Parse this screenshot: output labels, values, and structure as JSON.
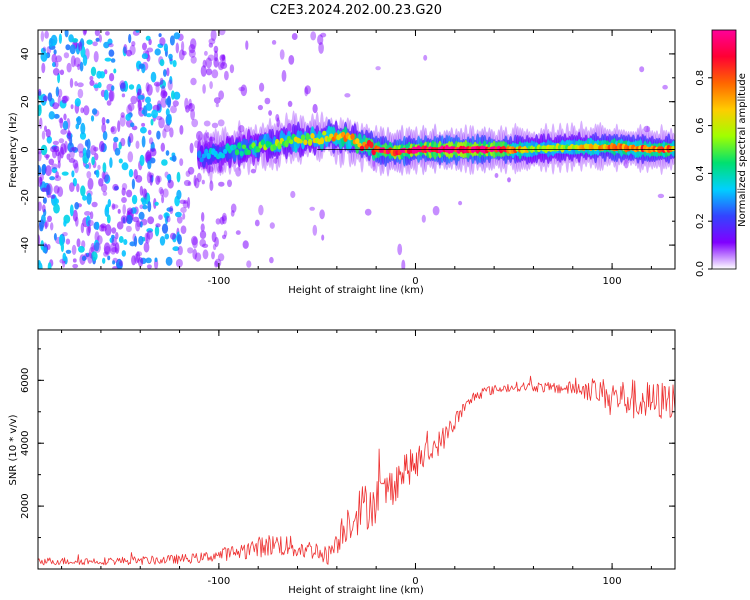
{
  "title": "C2E3.2024.202.00.23.G20",
  "colors": {
    "line": "#ee3333",
    "axis": "#000000",
    "colormap": [
      "#ffffff",
      "#8000ff",
      "#3344ff",
      "#00d0ff",
      "#00e070",
      "#a0ff00",
      "#ffcc00",
      "#ff6600",
      "#ff0033",
      "#ff0099"
    ]
  },
  "chart_data": [
    {
      "type": "heatmap",
      "xlabel": "Height of straight line (km)",
      "ylabel": "Frequency (Hz)",
      "xlim": [
        -192,
        132
      ],
      "ylim": [
        -50,
        50
      ],
      "x_ticks": [
        -100,
        0,
        100
      ],
      "y_ticks": [
        -40,
        -20,
        0,
        20,
        40
      ],
      "colorbar": {
        "label": "Normalized spectral amplitude",
        "range": [
          0,
          1
        ],
        "ticks": [
          "0.0",
          "0.2",
          "0.4",
          "0.6",
          "0.8"
        ],
        "tick_values": [
          0,
          0.2,
          0.4,
          0.6,
          0.8
        ]
      },
      "ridge": {
        "x": [
          -110,
          -90,
          -70,
          -50,
          -40,
          -30,
          -20,
          -10,
          0,
          20,
          40,
          60,
          80,
          100,
          120,
          132
        ],
        "frequency": [
          -3,
          0,
          3,
          5,
          5,
          3,
          0,
          -1,
          0,
          0,
          0,
          0,
          1,
          1,
          0,
          0
        ],
        "peak_amplitude": [
          0.3,
          0.45,
          0.55,
          0.6,
          0.7,
          0.75,
          0.85,
          0.92,
          0.95,
          0.97,
          0.95,
          0.55,
          0.6,
          0.75,
          0.8,
          0.75
        ]
      }
    },
    {
      "type": "line",
      "xlabel": "Height of straight line (km)",
      "ylabel": "SNR (10 * v/v)",
      "xlim": [
        -192,
        132
      ],
      "ylim": [
        0,
        7600
      ],
      "x_ticks": [
        -100,
        0,
        100
      ],
      "y_ticks": [
        2000,
        4000,
        6000
      ],
      "series": [
        {
          "x": [
            -192,
            -160,
            -130,
            -110,
            -100,
            -90,
            -80,
            -70,
            -60,
            -50,
            -45,
            -40,
            -35,
            -30,
            -25,
            -20,
            -15,
            -10,
            -5,
            0,
            5,
            10,
            15,
            20,
            25,
            30,
            35,
            40,
            50,
            60,
            70,
            80,
            90,
            100,
            110,
            120,
            132
          ],
          "y": [
            250,
            250,
            280,
            350,
            450,
            550,
            700,
            800,
            650,
            600,
            400,
            900,
            1500,
            1800,
            2000,
            2200,
            2400,
            2800,
            3200,
            3300,
            3600,
            3900,
            4200,
            4700,
            5100,
            5500,
            5650,
            5700,
            5800,
            5800,
            5750,
            5750,
            5700,
            5500,
            5400,
            5300,
            5400
          ],
          "spread": [
            120,
            120,
            140,
            160,
            200,
            260,
            330,
            380,
            330,
            300,
            300,
            450,
            650,
            750,
            800,
            750,
            700,
            650,
            600,
            500,
            450,
            400,
            380,
            300,
            220,
            180,
            160,
            150,
            150,
            160,
            180,
            220,
            400,
            550,
            650,
            650,
            600
          ]
        }
      ]
    }
  ]
}
